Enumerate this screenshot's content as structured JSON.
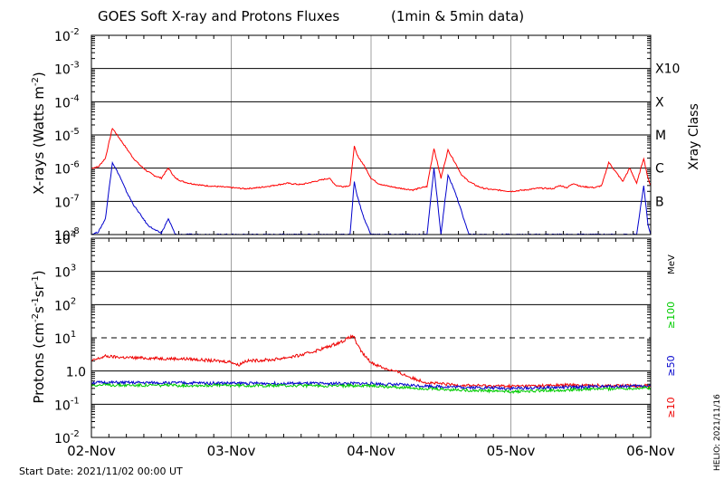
{
  "title": "GOES Soft X-ray and Protons Fluxes",
  "subtitle": "(1min & 5min data)",
  "footer": {
    "start_date": "Start Date: 2021/11/02 00:00 UT",
    "credit": "HELIO: 2021/11/16"
  },
  "colors": {
    "xray_long": "#ff0000",
    "xray_short": "#0000cc",
    "proton_10": "#ee0000",
    "proton_50": "#0000cc",
    "proton_100": "#00cc00",
    "grid": "#000000",
    "day_line": "#a0a0a0"
  },
  "chart_data": [
    {
      "type": "line",
      "name": "xrays",
      "ylabel": "X-rays (Watts m",
      "ylabel_sup": "-2",
      "ylabel_end": ")",
      "yscale": "log",
      "ylim": [
        1e-08,
        0.01
      ],
      "ytick_labels": [
        {
          "base": "10",
          "exp": "-2"
        },
        {
          "base": "10",
          "exp": "-3"
        },
        {
          "base": "10",
          "exp": "-4"
        },
        {
          "base": "10",
          "exp": "-5"
        },
        {
          "base": "10",
          "exp": "-6"
        },
        {
          "base": "10",
          "exp": "-7"
        },
        {
          "base": "10",
          "exp": "-8"
        }
      ],
      "class_axis_label": "Xray Class",
      "class_labels": [
        "X10",
        "X",
        "M",
        "C",
        "B"
      ],
      "x_unit": "days since 2021-11-02 00:00 UT",
      "xlim": [
        0,
        4
      ],
      "series": [
        {
          "color": "#ff0000",
          "x": [
            0,
            0.05,
            0.1,
            0.15,
            0.2,
            0.25,
            0.3,
            0.35,
            0.4,
            0.45,
            0.5,
            0.55,
            0.6,
            0.65,
            0.7,
            0.8,
            0.9,
            1.0,
            1.05,
            1.1,
            1.2,
            1.3,
            1.4,
            1.5,
            1.6,
            1.7,
            1.75,
            1.8,
            1.85,
            1.88,
            1.9,
            1.95,
            2.0,
            2.05,
            2.1,
            2.2,
            2.3,
            2.35,
            2.4,
            2.45,
            2.5,
            2.55,
            2.6,
            2.65,
            2.7,
            2.75,
            2.8,
            2.85,
            2.9,
            2.95,
            3.0,
            3.1,
            3.2,
            3.3,
            3.35,
            3.4,
            3.45,
            3.5,
            3.6,
            3.65,
            3.7,
            3.8,
            3.85,
            3.9,
            3.95,
            3.98,
            4.0
          ],
          "y": [
            1e-06,
            1.1e-06,
            2e-06,
            1.6e-05,
            8e-06,
            4e-06,
            2e-06,
            1.2e-06,
            8e-07,
            6e-07,
            5e-07,
            1e-06,
            5e-07,
            4e-07,
            3.5e-07,
            3e-07,
            2.8e-07,
            2.6e-07,
            2.5e-07,
            2.4e-07,
            2.6e-07,
            3e-07,
            3.5e-07,
            3.2e-07,
            4e-07,
            5e-07,
            3e-07,
            2.8e-07,
            3e-07,
            4.5e-06,
            2.5e-06,
            1.2e-06,
            5e-07,
            3.5e-07,
            3e-07,
            2.5e-07,
            2.2e-07,
            2.5e-07,
            2.8e-07,
            4e-06,
            5e-07,
            3.5e-06,
            1.5e-06,
            6e-07,
            4e-07,
            3e-07,
            2.5e-07,
            2.3e-07,
            2.2e-07,
            2.1e-07,
            2e-07,
            2.2e-07,
            2.5e-07,
            2.4e-07,
            3e-07,
            2.6e-07,
            3.5e-07,
            2.8e-07,
            2.6e-07,
            3e-07,
            1.5e-06,
            4e-07,
            1e-06,
            3.5e-07,
            2e-06,
            5e-07,
            3e-07
          ]
        },
        {
          "color": "#0000cc",
          "x": [
            0,
            0.05,
            0.1,
            0.15,
            0.2,
            0.25,
            0.3,
            0.35,
            0.4,
            0.45,
            0.5,
            0.55,
            0.6,
            0.7,
            0.8,
            0.9,
            1.0,
            1.1,
            1.2,
            1.3,
            1.4,
            1.5,
            1.6,
            1.7,
            1.8,
            1.85,
            1.88,
            1.9,
            1.95,
            2.0,
            2.1,
            2.2,
            2.3,
            2.4,
            2.45,
            2.5,
            2.55,
            2.6,
            2.7,
            2.8,
            2.9,
            3.0,
            3.1,
            3.2,
            3.3,
            3.4,
            3.5,
            3.6,
            3.65,
            3.7,
            3.8,
            3.85,
            3.9,
            3.95,
            3.98,
            4.0
          ],
          "y": [
            1e-08,
            1.2e-08,
            3e-08,
            1.5e-06,
            6e-07,
            2e-07,
            8e-08,
            4e-08,
            2e-08,
            1.4e-08,
            1.1e-08,
            3e-08,
            1e-08,
            1e-08,
            1e-08,
            1e-08,
            1e-08,
            1e-08,
            1e-08,
            1e-08,
            1e-08,
            1e-08,
            1e-08,
            1e-08,
            1e-08,
            1e-08,
            4e-07,
            1.5e-07,
            3e-08,
            1e-08,
            1e-08,
            1e-08,
            1e-08,
            1e-08,
            1e-06,
            1e-08,
            6e-07,
            2e-07,
            1e-08,
            1e-08,
            1e-08,
            1e-08,
            1e-08,
            1e-08,
            1e-08,
            1e-08,
            1e-08,
            1e-08,
            1e-08,
            1e-08,
            1e-08,
            1e-08,
            1e-08,
            3e-07,
            2e-08,
            1e-08
          ]
        }
      ]
    },
    {
      "type": "line",
      "name": "protons",
      "ylabel": "Protons (cm",
      "ylabel_sup1": "-2",
      "ylabel_mid1": "s",
      "ylabel_sup2": "-1",
      "ylabel_mid2": "sr",
      "ylabel_sup3": "-1",
      "ylabel_end": ")",
      "yscale": "log",
      "ylim": [
        0.01,
        10000
      ],
      "ytick_labels": [
        {
          "base": "10",
          "exp": "4"
        },
        {
          "base": "10",
          "exp": "3"
        },
        {
          "base": "10",
          "exp": "2"
        },
        {
          "base": "10",
          "exp": "1"
        },
        {
          "base": "1.0",
          "exp": ""
        },
        {
          "base": "10",
          "exp": "-1"
        },
        {
          "base": "10",
          "exp": "-2"
        }
      ],
      "dashed_threshold": 10,
      "energy_unit": "MeV",
      "energy_labels": [
        "≥100",
        "≥50",
        "≥10"
      ],
      "x_unit": "days since 2021-11-02 00:00 UT",
      "xlim": [
        0,
        4
      ],
      "xtick_labels": [
        "02-Nov",
        "03-Nov",
        "04-Nov",
        "05-Nov",
        "06-Nov"
      ],
      "series": [
        {
          "name": "≥10",
          "color": "#ee0000",
          "x": [
            0,
            0.1,
            0.2,
            0.3,
            0.5,
            0.7,
            0.9,
            1.0,
            1.05,
            1.1,
            1.3,
            1.5,
            1.6,
            1.7,
            1.8,
            1.85,
            1.88,
            1.9,
            1.95,
            2.0,
            2.1,
            2.2,
            2.3,
            2.4,
            2.6,
            2.8,
            3.0,
            3.2,
            3.4,
            3.6,
            3.8,
            4.0
          ],
          "y": [
            2.0,
            2.8,
            2.6,
            2.5,
            2.4,
            2.3,
            2.0,
            1.9,
            1.5,
            2.0,
            2.2,
            3.0,
            4.0,
            5.5,
            8.0,
            10.5,
            11.0,
            6.0,
            3.0,
            1.8,
            1.2,
            0.9,
            0.6,
            0.45,
            0.38,
            0.36,
            0.35,
            0.36,
            0.38,
            0.37,
            0.36,
            0.36
          ]
        },
        {
          "name": "≥50",
          "color": "#0000cc",
          "x": [
            0,
            0.5,
            1.0,
            1.5,
            2.0,
            2.5,
            3.0,
            3.5,
            4.0
          ],
          "y": [
            0.45,
            0.44,
            0.43,
            0.42,
            0.42,
            0.34,
            0.3,
            0.33,
            0.36
          ]
        },
        {
          "name": "≥100",
          "color": "#00cc00",
          "x": [
            0,
            0.5,
            1.0,
            1.5,
            2.0,
            2.5,
            3.0,
            3.5,
            4.0
          ],
          "y": [
            0.38,
            0.37,
            0.37,
            0.36,
            0.36,
            0.28,
            0.24,
            0.28,
            0.31
          ]
        }
      ]
    }
  ]
}
